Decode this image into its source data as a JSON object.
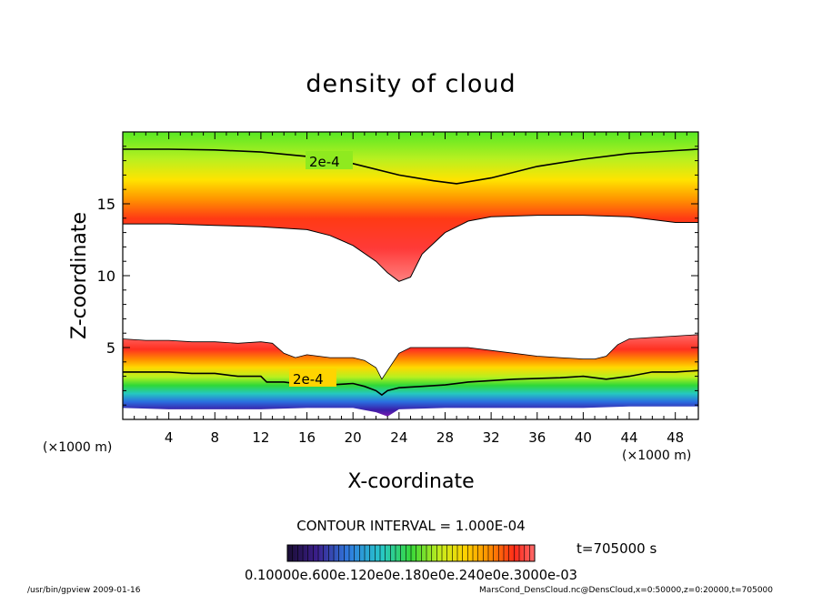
{
  "chart_data": {
    "type": "heatmap",
    "title": "density of cloud",
    "xlabel": "X-coordinate",
    "ylabel": "Z-coordinate",
    "x_unit": "(×1000 m)",
    "y_unit": "(×1000 m)",
    "xlim": [
      0,
      50
    ],
    "ylim": [
      0,
      20
    ],
    "x_ticks": [
      "4",
      "8",
      "12",
      "16",
      "20",
      "24",
      "28",
      "32",
      "36",
      "40",
      "44",
      "48"
    ],
    "y_ticks": [
      "5",
      "10",
      "15"
    ],
    "contour_interval": "CONTOUR INTERVAL = 1.000E-04",
    "time_label": "t=705000 s",
    "contour_labels": [
      "2e-4",
      "2e-4"
    ],
    "colorbar_labels": [
      "0.10000",
      "0.60000e-04",
      "0.12000e-03",
      "0.18000e-03",
      "0.24000e-03",
      "0.30000e-03"
    ],
    "colorbar_label_text": "0.10000e.600e.120e0e.180e0e.240e0e.3000e-03",
    "footer_left": "/usr/bin/gpview  2009-01-16",
    "footer_right": "MarsCond_DensCloud.nc@DensCloud,x=0:50000,z=0:20000,t=705000",
    "upper_layer": {
      "top_contour_z": [
        [
          0,
          18.8
        ],
        [
          4,
          18.8
        ],
        [
          8,
          18.75
        ],
        [
          12,
          18.6
        ],
        [
          16,
          18.3
        ],
        [
          20,
          17.8
        ],
        [
          24,
          17.0
        ],
        [
          27,
          16.6
        ],
        [
          29,
          16.4
        ],
        [
          32,
          16.8
        ],
        [
          36,
          17.6
        ],
        [
          40,
          18.1
        ],
        [
          44,
          18.5
        ],
        [
          48,
          18.7
        ],
        [
          50,
          18.8
        ]
      ],
      "bottom_z": [
        [
          0,
          13.6
        ],
        [
          4,
          13.6
        ],
        [
          8,
          13.5
        ],
        [
          12,
          13.4
        ],
        [
          16,
          13.2
        ],
        [
          18,
          12.8
        ],
        [
          20,
          12.1
        ],
        [
          22,
          11.0
        ],
        [
          23,
          10.2
        ],
        [
          24,
          9.6
        ],
        [
          25,
          9.9
        ],
        [
          26,
          11.5
        ],
        [
          28,
          13.0
        ],
        [
          30,
          13.8
        ],
        [
          32,
          14.1
        ],
        [
          36,
          14.2
        ],
        [
          40,
          14.2
        ],
        [
          44,
          14.1
        ],
        [
          48,
          13.7
        ],
        [
          50,
          13.7
        ]
      ]
    },
    "lower_layer": {
      "top_z": [
        [
          0,
          5.6
        ],
        [
          2,
          5.5
        ],
        [
          4,
          5.5
        ],
        [
          6,
          5.4
        ],
        [
          8,
          5.4
        ],
        [
          10,
          5.3
        ],
        [
          12,
          5.4
        ],
        [
          13,
          5.3
        ],
        [
          14,
          4.6
        ],
        [
          15,
          4.3
        ],
        [
          16,
          4.5
        ],
        [
          18,
          4.3
        ],
        [
          20,
          4.3
        ],
        [
          21,
          4.1
        ],
        [
          22,
          3.6
        ],
        [
          22.5,
          2.8
        ],
        [
          23,
          3.4
        ],
        [
          24,
          4.6
        ],
        [
          25,
          5.0
        ],
        [
          27,
          5.0
        ],
        [
          30,
          5.0
        ],
        [
          32,
          4.8
        ],
        [
          34,
          4.6
        ],
        [
          36,
          4.4
        ],
        [
          38,
          4.3
        ],
        [
          40,
          4.2
        ],
        [
          41,
          4.2
        ],
        [
          42,
          4.4
        ],
        [
          43,
          5.2
        ],
        [
          44,
          5.6
        ],
        [
          46,
          5.7
        ],
        [
          48,
          5.8
        ],
        [
          50,
          5.9
        ]
      ],
      "contour_2e4_z": [
        [
          0,
          3.3
        ],
        [
          4,
          3.3
        ],
        [
          6,
          3.2
        ],
        [
          8,
          3.2
        ],
        [
          10,
          3.0
        ],
        [
          12,
          3.0
        ],
        [
          12.5,
          2.6
        ],
        [
          14,
          2.6
        ],
        [
          16,
          2.4
        ],
        [
          18,
          2.4
        ],
        [
          20,
          2.5
        ],
        [
          21,
          2.3
        ],
        [
          22,
          2.0
        ],
        [
          22.5,
          1.7
        ],
        [
          23,
          2.0
        ],
        [
          24,
          2.2
        ],
        [
          26,
          2.3
        ],
        [
          28,
          2.4
        ],
        [
          30,
          2.6
        ],
        [
          34,
          2.8
        ],
        [
          38,
          2.9
        ],
        [
          40,
          3.0
        ],
        [
          42,
          2.8
        ],
        [
          44,
          3.0
        ],
        [
          46,
          3.3
        ],
        [
          48,
          3.3
        ],
        [
          50,
          3.4
        ]
      ],
      "bottom_z": [
        [
          0,
          0.8
        ],
        [
          4,
          0.7
        ],
        [
          8,
          0.7
        ],
        [
          12,
          0.7
        ],
        [
          16,
          0.8
        ],
        [
          20,
          0.8
        ],
        [
          22,
          0.5
        ],
        [
          23,
          0.2
        ],
        [
          24,
          0.7
        ],
        [
          28,
          0.8
        ],
        [
          32,
          0.8
        ],
        [
          36,
          0.8
        ],
        [
          40,
          0.8
        ],
        [
          44,
          0.9
        ],
        [
          48,
          0.9
        ],
        [
          50,
          0.9
        ]
      ]
    }
  }
}
